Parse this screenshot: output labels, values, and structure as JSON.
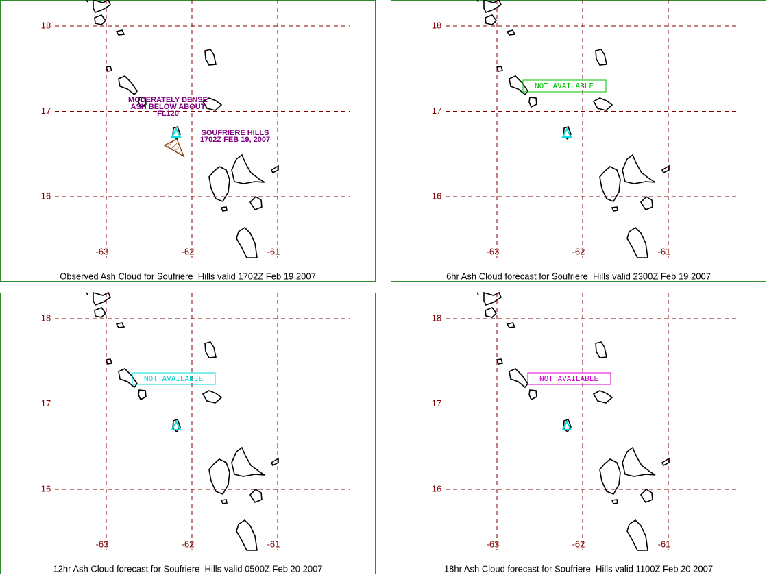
{
  "panels": [
    {
      "caption": "Observed Ash Cloud for Soufriere  Hills valid 1702Z Feb 19 2007",
      "lat_labels": [
        18,
        17,
        16
      ],
      "lon_labels": [
        -63,
        -62,
        -61
      ],
      "cloud_labels": [
        "MODERATELY DENSE",
        "ASH BELOW ABOUT",
        "FL120"
      ],
      "volcano_labels": [
        "SOUFRIERE HILLS",
        "1702Z FEB 19, 2007"
      ]
    },
    {
      "caption": "6hr Ash Cloud forecast for Soufriere  Hills valid 2300Z Feb 19 2007",
      "lat_labels": [
        18,
        17,
        16
      ],
      "lon_labels": [
        -63,
        -62,
        -61
      ],
      "status": "NOT AVAILABLE",
      "status_color": "#00c000"
    },
    {
      "caption": "12hr Ash Cloud forecast for Soufriere  Hills valid 0500Z Feb 20 2007",
      "lat_labels": [
        18,
        17,
        16
      ],
      "lon_labels": [
        -63,
        -62,
        -61
      ],
      "status": "NOT AVAILABLE",
      "status_color": "#00d8d8"
    },
    {
      "caption": "18hr Ash Cloud forecast for Soufriere  Hills valid 1100Z Feb 20 2007",
      "lat_labels": [
        18,
        17,
        16
      ],
      "lon_labels": [
        -63,
        -62,
        -61
      ],
      "status": "NOT AVAILABLE",
      "status_color": "#d000d0"
    }
  ]
}
